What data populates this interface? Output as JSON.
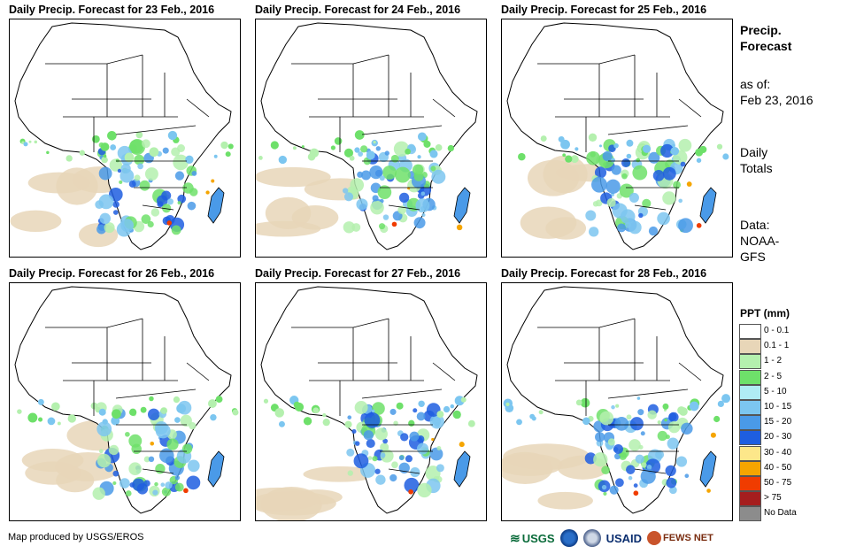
{
  "panels": [
    {
      "title": "Daily Precip. Forecast for 23 Feb., 2016"
    },
    {
      "title": "Daily Precip. Forecast for 24 Feb., 2016"
    },
    {
      "title": "Daily Precip. Forecast for 25 Feb., 2016"
    },
    {
      "title": "Daily Precip. Forecast for 26 Feb., 2016"
    },
    {
      "title": "Daily Precip. Forecast for 27 Feb., 2016"
    },
    {
      "title": "Daily Precip. Forecast for 28 Feb., 2016"
    }
  ],
  "sidebar": {
    "heading_line1": "Precip.",
    "heading_line2": "Forecast",
    "asof_label": "as of:",
    "asof_date": "Feb 23, 2016",
    "totals_line1": "Daily",
    "totals_line2": "Totals",
    "data_label": "Data:",
    "data_source_line1": "NOAA-",
    "data_source_line2": "GFS"
  },
  "legend": {
    "title": "PPT (mm)",
    "items": [
      {
        "label": "0 - 0.1",
        "color": "#ffffff"
      },
      {
        "label": "0.1 - 1",
        "color": "#e8d6b8"
      },
      {
        "label": "1 - 2",
        "color": "#b4f0ae"
      },
      {
        "label": "2 - 5",
        "color": "#6ee06a"
      },
      {
        "label": "5 - 10",
        "color": "#b0ecf4"
      },
      {
        "label": "10 - 15",
        "color": "#7cc6f0"
      },
      {
        "label": "15 - 20",
        "color": "#4a9ae8"
      },
      {
        "label": "20 - 30",
        "color": "#1e5ee0"
      },
      {
        "label": "30 - 40",
        "color": "#fde78a"
      },
      {
        "label": "40 - 50",
        "color": "#f5a500"
      },
      {
        "label": "50 - 75",
        "color": "#f03c00"
      },
      {
        "label": "> 75",
        "color": "#a51e1e"
      },
      {
        "label": "No Data",
        "color": "#8c8c8c"
      }
    ]
  },
  "credit": "Map produced by USGS/EROS",
  "logos": {
    "usgs": "USGS",
    "usaid": "USAID",
    "fews": "FEWS NET"
  }
}
